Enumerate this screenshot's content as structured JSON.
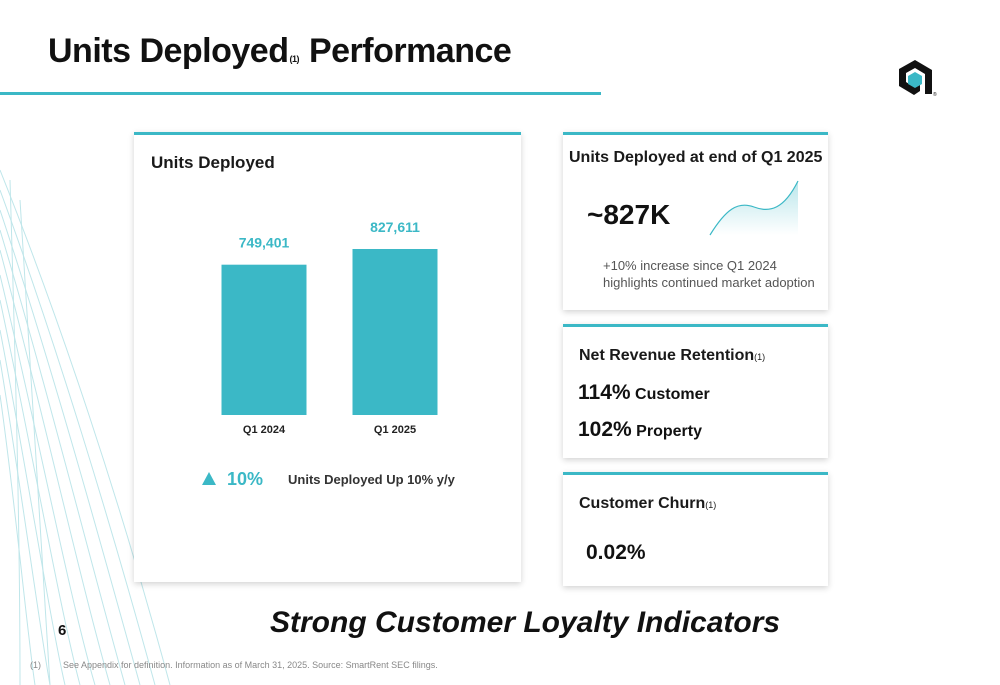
{
  "title": {
    "main": "Units Deployed",
    "note_mark": "(1)",
    "suffix": "Performance"
  },
  "colors": {
    "accent": "#3bb8c6",
    "text": "#111111",
    "muted": "#555555"
  },
  "logo": {
    "icon": "company-logo-icon",
    "mark": "®"
  },
  "units_chart_card": {
    "heading": "Units Deployed",
    "growth_icon": "triangle-up-icon",
    "growth_pct": "10%",
    "growth_text": "Units Deployed Up 10% y/y"
  },
  "chart_data": {
    "type": "bar",
    "title": "Units Deployed",
    "categories": [
      "Q1 2024",
      "Q1 2025"
    ],
    "values": [
      749401,
      827611
    ],
    "data_labels": [
      "749,401",
      "827,611"
    ],
    "ylim": [
      0,
      827611
    ],
    "grid": false,
    "bar_color": "#3bb8c6"
  },
  "units_end_card": {
    "heading": "Units Deployed at end of Q1 2025",
    "value": "~827K",
    "sparkline_icon": "trend-up-area-icon",
    "note_line1": "+10% increase since Q1 2024",
    "note_line2": "highlights continued market adoption"
  },
  "nrr_card": {
    "heading": "Net Revenue Retention",
    "note_mark": "(1)",
    "rows": [
      {
        "value": "114%",
        "label": "Customer"
      },
      {
        "value": "102%",
        "label": "Property"
      }
    ]
  },
  "churn_card": {
    "heading": "Customer Churn",
    "note_mark": "(1)",
    "value": "0.02%"
  },
  "tagline": "Strong Customer Loyalty Indicators",
  "page_number": "6",
  "footnote": {
    "number": "(1)",
    "text": "See Appendix for definition. Information as of March 31, 2025. Source: SmartRent SEC filings."
  }
}
